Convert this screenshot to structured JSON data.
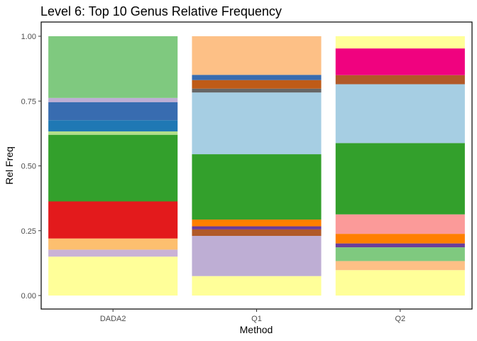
{
  "chart_data": {
    "type": "bar",
    "stacked": true,
    "title": "Level 6: Top 10 Genus Relative Frequency",
    "xlabel": "Method",
    "ylabel": "Rel Freq",
    "categories": [
      "DADA2",
      "Q1",
      "Q2"
    ],
    "ylim": [
      0,
      1
    ],
    "yticks": [
      "0.00",
      "0.25",
      "0.50",
      "0.75",
      "1.00"
    ],
    "ytick_values": [
      0,
      0.25,
      0.5,
      0.75,
      1
    ],
    "grid": false,
    "legend": "none",
    "stacks": [
      {
        "category": "DADA2",
        "segments": [
          {
            "value": 0.15,
            "color": "#ffff99"
          },
          {
            "value": 0.027,
            "color": "#cab2d6"
          },
          {
            "value": 0.043,
            "color": "#fdbf6f"
          },
          {
            "value": 0.143,
            "color": "#e31a1c"
          },
          {
            "value": 0.257,
            "color": "#33a02c"
          },
          {
            "value": 0.013,
            "color": "#b2df8a"
          },
          {
            "value": 0.043,
            "color": "#1f78b4"
          },
          {
            "value": 0.07,
            "color": "#386cb0"
          },
          {
            "value": 0.016,
            "color": "#beaed4"
          },
          {
            "value": 0.238,
            "color": "#7fc97f"
          }
        ]
      },
      {
        "category": "Q1",
        "segments": [
          {
            "value": 0.075,
            "color": "#ffff99"
          },
          {
            "value": 0.155,
            "color": "#beaed4"
          },
          {
            "value": 0.025,
            "color": "#b15928"
          },
          {
            "value": 0.012,
            "color": "#6a3d9a"
          },
          {
            "value": 0.026,
            "color": "#ff7f00"
          },
          {
            "value": 0.252,
            "color": "#33a02c"
          },
          {
            "value": 0.238,
            "color": "#a6cee3"
          },
          {
            "value": 0.015,
            "color": "#666666"
          },
          {
            "value": 0.033,
            "color": "#bf5b17"
          },
          {
            "value": 0.02,
            "color": "#386cb0"
          },
          {
            "value": 0.149,
            "color": "#fdc086"
          }
        ]
      },
      {
        "category": "Q2",
        "segments": [
          {
            "value": 0.098,
            "color": "#ffff99"
          },
          {
            "value": 0.035,
            "color": "#fdc086"
          },
          {
            "value": 0.053,
            "color": "#7fc97f"
          },
          {
            "value": 0.015,
            "color": "#6a3d9a"
          },
          {
            "value": 0.037,
            "color": "#ff7f00"
          },
          {
            "value": 0.075,
            "color": "#fb9a99"
          },
          {
            "value": 0.275,
            "color": "#33a02c"
          },
          {
            "value": 0.227,
            "color": "#a6cee3"
          },
          {
            "value": 0.035,
            "color": "#b15928"
          },
          {
            "value": 0.103,
            "color": "#f0027f"
          },
          {
            "value": 0.047,
            "color": "#ffff99"
          }
        ]
      }
    ]
  }
}
